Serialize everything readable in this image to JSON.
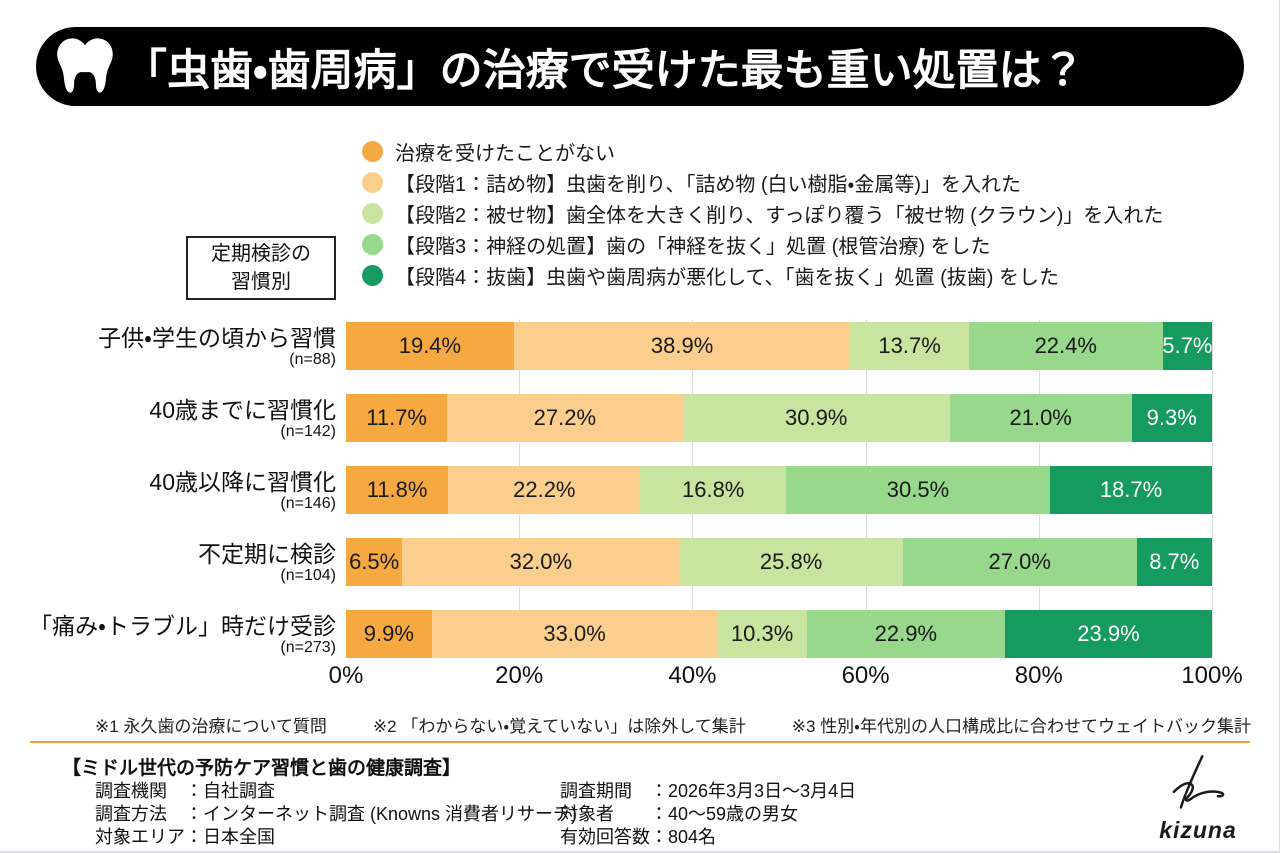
{
  "header": {
    "title": "「虫歯・歯周病」の治療で受けた最も重い処置は？"
  },
  "group_box": {
    "line1": "定期検診の",
    "line2": "習慣別"
  },
  "chart_data": {
    "type": "bar",
    "variant": "horizontal-stacked",
    "stacked": true,
    "grid": true,
    "legend_position": "top",
    "xlim": [
      0,
      100
    ],
    "xticks": [
      "0%",
      "20%",
      "40%",
      "60%",
      "80%",
      "100%"
    ],
    "categories": [
      "子供・学生の頃から習慣",
      "40歳までに習慣化",
      "40歳以降に習慣化",
      "不定期に検診",
      "「痛み・トラブル」時だけ受診"
    ],
    "category_counts": [
      "(n=88)",
      "(n=142)",
      "(n=146)",
      "(n=104)",
      "(n=273)"
    ],
    "series": [
      {
        "name": "治療を受けたことがない",
        "color": "#F7A941",
        "label_color": "#1a1a1a",
        "values": [
          19.4,
          11.7,
          11.8,
          6.5,
          9.9
        ]
      },
      {
        "name": "【段階1：詰め物】虫歯を削り、「詰め物 (白い樹脂・金属等)」を入れた",
        "color": "#FBCE8E",
        "label_color": "#1a1a1a",
        "values": [
          38.9,
          27.2,
          22.2,
          32.0,
          33.0
        ]
      },
      {
        "name": "【段階2：被せ物】歯全体を大きく削り、すっぽり覆う「被せ物 (クラウン)」を入れた",
        "color": "#C9E49E",
        "label_color": "#1a1a1a",
        "values": [
          13.7,
          30.9,
          16.8,
          25.8,
          10.3
        ]
      },
      {
        "name": "【段階3：神経の処置】歯の「神経を抜く」処置 (根管治療) をした",
        "color": "#97D88D",
        "label_color": "#1a1a1a",
        "values": [
          22.4,
          21.0,
          30.5,
          27.0,
          22.9
        ]
      },
      {
        "name": "【段階4：抜歯】虫歯や歯周病が悪化して、「歯を抜く」処置 (抜歯) をした",
        "color": "#159A5F",
        "label_color": "#ffffff",
        "values": [
          5.7,
          9.3,
          18.7,
          8.7,
          23.9
        ]
      }
    ]
  },
  "notes": [
    "※1 永久歯の治療について質問",
    "※2 「わからない・覚えていない」は除外して集計",
    "※3 性別・年代別の人口構成比に合わせてウェイトバック集計"
  ],
  "survey": {
    "title": "【ミドル世代の予防ケア習慣と歯の健康調査】",
    "left_lines": [
      "調査機関　：自社調査",
      "調査方法　：インターネット調査 (Knowns 消費者リサーチ)",
      "対象エリア：日本全国"
    ],
    "right_lines": [
      "調査期間　：2026年3月3日～3月4日",
      "対象者　　：40～59歳の男女",
      "有効回答数：804名"
    ],
    "logo_text": "kizuna"
  },
  "colors": {
    "banner_bg": "#000000",
    "banner_text": "#ffffff",
    "divider": "#F39A39",
    "grid": "#dcdcdc"
  }
}
